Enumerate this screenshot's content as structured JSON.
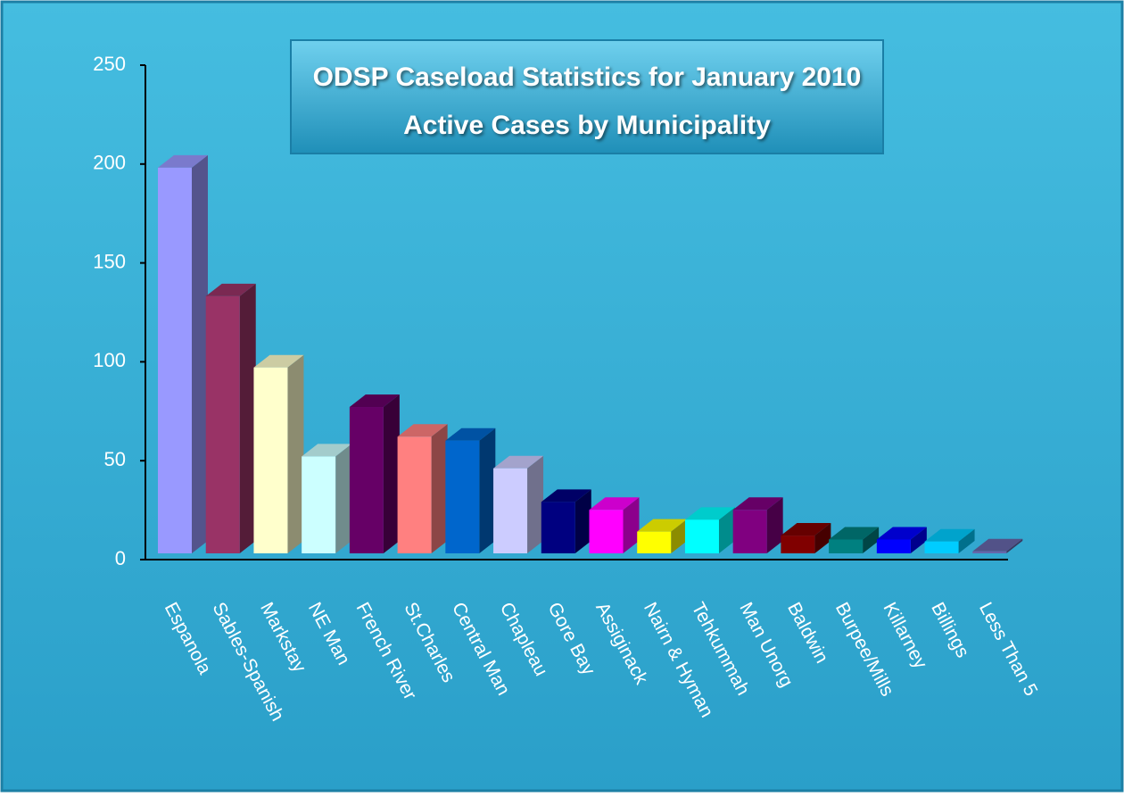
{
  "chart_data": {
    "type": "bar3d",
    "title": "ODSP Caseload Statistics for January 2010",
    "subtitle": "Active Cases by Municipality",
    "categories": [
      "Espanola",
      "Sables-Spanish",
      "Markstay",
      "NE Man",
      "French River",
      "St.Charles",
      "Central Man",
      "Chapleau",
      "Gore Bay",
      "Assiginack",
      "Nairn & Hyman",
      "Tehkummah",
      "Man Unorg",
      "Baldwin",
      "Burpee/Mills",
      "Killarney",
      "Billings",
      "Less Than 5"
    ],
    "values": [
      195,
      130,
      94,
      49,
      74,
      59,
      57,
      43,
      26,
      22,
      11,
      17,
      22,
      9,
      7,
      7,
      6,
      1
    ],
    "colors": [
      "#9999ff",
      "#993366",
      "#ffffcc",
      "#ccffff",
      "#660066",
      "#ff8080",
      "#0066cc",
      "#ccccff",
      "#000080",
      "#ff00ff",
      "#ffff00",
      "#00ffff",
      "#800080",
      "#800000",
      "#008080",
      "#0000ff",
      "#00ccff",
      "#6666aa"
    ],
    "ylim": [
      0,
      250
    ],
    "yticks": [
      0,
      50,
      100,
      150,
      200,
      250
    ]
  }
}
